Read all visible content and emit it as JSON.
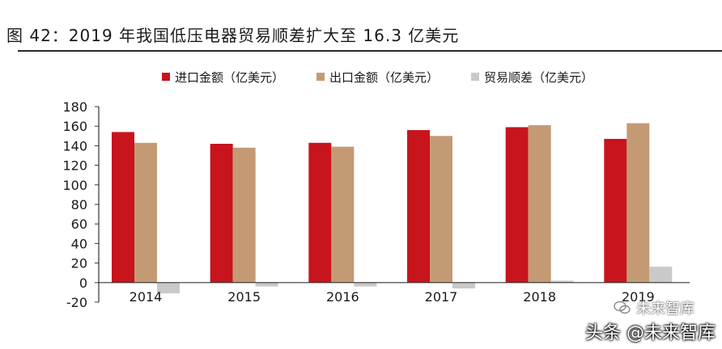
{
  "figure": {
    "title": "图 42：2019 年我国低压电器贸易顺差扩大至 16.3 亿美元"
  },
  "watermark": {
    "text": "头条 @未来智库",
    "wechat_text": "未来智库"
  },
  "colors": {
    "import": "#c8141c",
    "export": "#c49a74",
    "surplus": "#c9c9c9",
    "axis": "#333333"
  },
  "chart_data": {
    "type": "bar",
    "categories": [
      "2014",
      "2015",
      "2016",
      "2017",
      "2018",
      "2019"
    ],
    "series": [
      {
        "name": "进口金额（亿美元）",
        "values": [
          154,
          142,
          143,
          156,
          159,
          147
        ]
      },
      {
        "name": "出口金额（亿美元）",
        "values": [
          143,
          138,
          139,
          150,
          161,
          163
        ]
      },
      {
        "name": "贸易顺差（亿美元）",
        "values": [
          -11,
          -4,
          -4,
          -6,
          2,
          16.3
        ]
      }
    ],
    "yticks": [
      "180",
      "160",
      "140",
      "120",
      "100",
      "80",
      "60",
      "40",
      "20",
      "0",
      "-20"
    ],
    "ylim": [
      -20,
      180
    ],
    "legend_position": "top",
    "grid": false
  }
}
